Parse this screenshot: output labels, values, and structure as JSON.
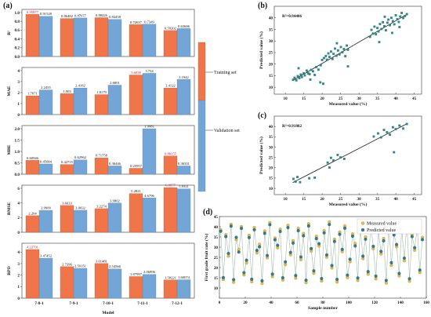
{
  "panels": {
    "a": "(a)",
    "b": "(b)",
    "c": "(c)",
    "d": "(d)"
  },
  "colors": {
    "training": "#f0764a",
    "validation": "#73a5d6",
    "measured": "#e8b84a",
    "predicted": "#2e7f8c",
    "scatter": "#2a8a8a",
    "fit": "#222222",
    "highlight": "#c0143c"
  },
  "legend_a": {
    "training": "Training set",
    "validation": "Validation set"
  },
  "chart_data": [
    {
      "type": "bar",
      "panel": "a",
      "categories": [
        "7-8-1",
        "7-9-1",
        "7-10-1",
        "7-11-1",
        "7-12-1"
      ],
      "xlabel": "Model",
      "highlight_note": "highest training values per metric printed in red",
      "subplots": [
        {
          "ylabel": "R²",
          "ylim": [
            0,
            1.0
          ],
          "yticks": [
            "0.0",
            "0.2",
            "0.4",
            "0.6",
            "0.8",
            "1.0"
          ],
          "series": [
            {
              "name": "Training set",
              "values": [
                0.95877,
                0.86482,
                0.88426,
                0.72637,
                0.59202
              ],
              "labels": [
                "0.95877",
                "0.86482",
                "0.88426",
                "0.72637",
                "0.59202"
              ]
            },
            {
              "name": "Validation set",
              "values": [
                0.91528,
                0.87677,
                0.84458,
                0.7349,
                0.63606
              ],
              "labels": [
                "0.91528",
                "0.87677",
                "0.84458",
                "0.7349",
                "0.63606"
              ]
            }
          ],
          "red_training_index": 0
        },
        {
          "ylabel": "MAE",
          "ylim": [
            0,
            4.0
          ],
          "yticks": [
            "0",
            "1",
            "2",
            "3",
            "4"
          ],
          "series": [
            {
              "name": "Training set",
              "values": [
                1.7071,
                1.903,
                1.8179,
                3.6058,
                2.4122
              ],
              "labels": [
                "1.7071",
                "1.903",
                "1.8179",
                "3.6058",
                "2.4122"
              ]
            },
            {
              "name": "Validation set",
              "values": [
                2.2455,
                2.4182,
                2.6801,
                3.754,
                3.1942
              ],
              "labels": [
                "2.2455",
                "2.4182",
                "2.6801",
                "3.754",
                "3.1942"
              ]
            }
          ],
          "red_training_index": 3
        },
        {
          "ylabel": "MBE",
          "ylim": [
            0,
            2.0
          ],
          "yticks": [
            "0.0",
            "0.5",
            "1.0",
            "1.5",
            "2.0"
          ],
          "series": [
            {
              "name": "Training set",
              "values": [
                0.60946,
                0.42715,
                0.71758,
                0.25957,
                0.80157
              ],
              "labels": [
                "0.60946",
                "0.42715",
                "0.71758",
                "0.25957",
                "0.80157"
              ]
            },
            {
              "name": "Validation set",
              "values": [
                0.45004,
                0.62962,
                0.36446,
                1.9981,
                0.36331
              ],
              "labels": [
                "0.45004",
                "0.62962",
                "0.36446",
                "1.9981",
                "0.36331"
              ]
            }
          ],
          "red_training_index": 4
        },
        {
          "ylabel": "RMSE",
          "ylim": [
            0,
            6
          ],
          "yticks": [
            "0",
            "2",
            "4",
            "6"
          ],
          "series": [
            {
              "name": "Training set",
              "values": [
                2.264,
                3.6633,
                3.2274,
                5.2821,
                6.0977
              ],
              "labels": [
                "2.264",
                "3.6633",
                "3.2274",
                "5.2821",
                "6.0977"
              ]
            },
            {
              "name": "Validation set",
              "values": [
                2.9909,
                3.0032,
                3.9802,
                4.6796,
                5.9311
              ],
              "labels": [
                "2.9909",
                "3.0032",
                "3.9802",
                "4.6796",
                "5.9311"
              ]
            }
          ],
          "red_training_index": 4
        },
        {
          "ylabel": "RPD",
          "ylim": [
            0,
            4.5
          ],
          "yticks": [
            "0",
            "1",
            "2",
            "3",
            "4"
          ],
          "series": [
            {
              "name": "Training set",
              "values": [
                4.22791,
                2.7396,
                3.01481,
                1.87997,
                1.58221
              ],
              "labels": [
                "4.22791",
                "2.7396",
                "3.01481",
                "1.87997",
                "1.58221"
              ]
            },
            {
              "name": "Validation set",
              "values": [
                3.47452,
                2.59151,
                2.54566,
                2.06896,
                1.60074
              ],
              "labels": [
                "3.47452",
                "2.59151",
                "2.54566",
                "2.06896",
                "1.60074"
              ]
            }
          ],
          "red_training_index": 0
        }
      ]
    },
    {
      "type": "scatter",
      "panel": "b",
      "annotation": "R²=0.94406",
      "xlabel": "Measured value (%)",
      "ylabel": "Predicted value (%)",
      "xlim": [
        7,
        47
      ],
      "ylim": [
        7,
        45
      ],
      "xticks": [
        10,
        15,
        20,
        25,
        30,
        35,
        40,
        45
      ],
      "yticks": [
        10,
        15,
        20,
        25,
        30,
        35,
        40
      ],
      "fit_line": {
        "x": [
          12,
          43
        ],
        "y": [
          12.9,
          41.5
        ]
      },
      "x": [
        12.1,
        12.5,
        13.0,
        13.4,
        13.8,
        14.2,
        14.5,
        15.0,
        15.3,
        15.8,
        16.2,
        16.6,
        17.0,
        17.5,
        18.0,
        18.4,
        19.0,
        19.6,
        20.0,
        20.5,
        21.0,
        21.3,
        21.7,
        22.0,
        22.4,
        22.8,
        23.1,
        23.5,
        23.9,
        24.3,
        24.7,
        25.1,
        25.5,
        25.9,
        26.3,
        26.7,
        27.0,
        33.0,
        33.4,
        33.8,
        34.2,
        34.6,
        35.0,
        35.3,
        35.7,
        36.1,
        36.5,
        36.9,
        37.3,
        37.7,
        38.0,
        38.4,
        38.8,
        39.2,
        39.6,
        40.0,
        40.4,
        40.8,
        41.2,
        41.6,
        42.0,
        42.5,
        43.0,
        13.6,
        16.8,
        19.5,
        24.0,
        27.0,
        35.5,
        37.0,
        39.0,
        41.0,
        20.3
      ],
      "y": [
        13.2,
        14.1,
        13.0,
        14.8,
        13.9,
        15.5,
        14.4,
        16.0,
        15.1,
        17.2,
        16.0,
        15.6,
        17.5,
        16.9,
        15.3,
        18.7,
        17.6,
        19.5,
        21.8,
        22.6,
        23.5,
        21.9,
        24.6,
        23.1,
        25.4,
        22.2,
        24.4,
        26.7,
        23.6,
        25.9,
        24.2,
        27.4,
        25.1,
        26.5,
        23.4,
        28.0,
        26.2,
        31.8,
        34.8,
        33.2,
        36.2,
        32.9,
        35.6,
        34.1,
        37.3,
        35.2,
        38.1,
        36.4,
        34.6,
        37.9,
        39.2,
        36.8,
        40.0,
        38.6,
        37.2,
        41.1,
        39.4,
        38.2,
        40.6,
        42.1,
        39.9,
        40.8,
        41.6,
        18.2,
        13.3,
        12.1,
        29.0,
        19.0,
        29.5,
        40.5,
        33.5,
        36.0,
        11.5
      ]
    },
    {
      "type": "scatter",
      "panel": "c",
      "annotation": "R²=0.91802",
      "xlabel": "Measured value (%)",
      "ylabel": "Predicted value (%)",
      "xlim": [
        7,
        47
      ],
      "ylim": [
        7,
        45
      ],
      "xticks": [
        10,
        15,
        20,
        25,
        30,
        35,
        40,
        45
      ],
      "yticks": [
        10,
        15,
        20,
        25,
        30,
        35,
        40
      ],
      "fit_line": {
        "x": [
          12,
          43
        ],
        "y": [
          12.8,
          41.3
        ]
      },
      "x": [
        12.2,
        12.8,
        13.3,
        14.0,
        16.5,
        18.0,
        21.5,
        22.4,
        23.1,
        24.2,
        25.0,
        26.0,
        34.0,
        35.2,
        36.0,
        36.8,
        37.6,
        38.4,
        39.2,
        40.0,
        41.0,
        42.0,
        43.0,
        22.0,
        39.5
      ],
      "y": [
        14.6,
        13.3,
        15.5,
        13.0,
        14.9,
        15.2,
        22.5,
        24.8,
        23.5,
        26.2,
        25.0,
        24.3,
        35.1,
        36.6,
        34.7,
        38.3,
        37.2,
        36.0,
        39.6,
        38.7,
        40.4,
        39.0,
        41.2,
        20.1,
        27.5
      ]
    },
    {
      "type": "scatter",
      "panel": "d",
      "xlabel": "Sample number",
      "ylabel": "First grade fruit rate (%)",
      "xlim": [
        0,
        160
      ],
      "ylim": [
        5,
        45
      ],
      "xticks": [
        0,
        20,
        40,
        60,
        80,
        100,
        120,
        140,
        160
      ],
      "yticks": [
        10,
        15,
        20,
        25,
        30,
        35,
        40,
        45
      ],
      "legend": [
        "Measured value",
        "Predicted value"
      ],
      "series": [
        {
          "name": "Measured value",
          "x_start": 1,
          "x_step": 2,
          "count": 79,
          "values_ref": "generated_pattern"
        },
        {
          "name": "Predicted value",
          "x_start": 1,
          "x_step": 2,
          "count": 79,
          "values_ref": "generated_pattern"
        }
      ],
      "measured": [
        38.5,
        14.2,
        36.1,
        25.6,
        41.2,
        12.8,
        33.7,
        28.9,
        40.1,
        16.4,
        22.3,
        35.8,
        13.1,
        39.6,
        27.2,
        31.4,
        12.2,
        37.9,
        24.8,
        42.0,
        15.6,
        34.5,
        29.7,
        38.8,
        13.9,
        21.5,
        40.7,
        26.3,
        33.1,
        14.8,
        39.2,
        23.9,
        36.7,
        12.6,
        41.5,
        28.1,
        17.2,
        35.3,
        30.6,
        13.4,
        38.1,
        25.1,
        42.3,
        19.8,
        33.9,
        12.9,
        37.4,
        27.8,
        40.4,
        15.1,
        22.9,
        36.5,
        31.8,
        13.7,
        39.9,
        24.4,
        35.0,
        16.8,
        41.8,
        29.3,
        14.5,
        38.3,
        26.7,
        34.2,
        12.4,
        40.9,
        21.1,
        37.1,
        30.2,
        15.9,
        39.4,
        23.3,
        42.6,
        13.3,
        36.3,
        28.5,
        40.2,
        17.6,
        34.8
      ],
      "predicted": [
        37.8,
        15.1,
        35.2,
        26.9,
        40.3,
        14.1,
        34.8,
        27.6,
        39.2,
        17.5,
        23.6,
        34.7,
        14.3,
        38.5,
        28.4,
        30.2,
        13.5,
        36.8,
        25.9,
        41.0,
        16.8,
        33.6,
        30.9,
        37.7,
        15.0,
        22.8,
        39.6,
        27.4,
        32.0,
        16.1,
        38.1,
        25.2,
        35.6,
        13.8,
        40.4,
        29.3,
        18.4,
        34.2,
        31.7,
        14.6,
        37.0,
        26.2,
        41.1,
        21.0,
        32.8,
        14.2,
        36.3,
        28.9,
        39.3,
        16.3,
        24.1,
        35.4,
        30.6,
        14.9,
        38.8,
        25.6,
        33.9,
        18.0,
        40.7,
        30.4,
        15.8,
        37.2,
        27.9,
        33.1,
        13.7,
        39.8,
        22.4,
        36.0,
        31.3,
        17.1,
        38.3,
        24.6,
        41.4,
        14.5,
        35.2,
        29.7,
        39.1,
        18.8,
        33.7
      ]
    }
  ]
}
